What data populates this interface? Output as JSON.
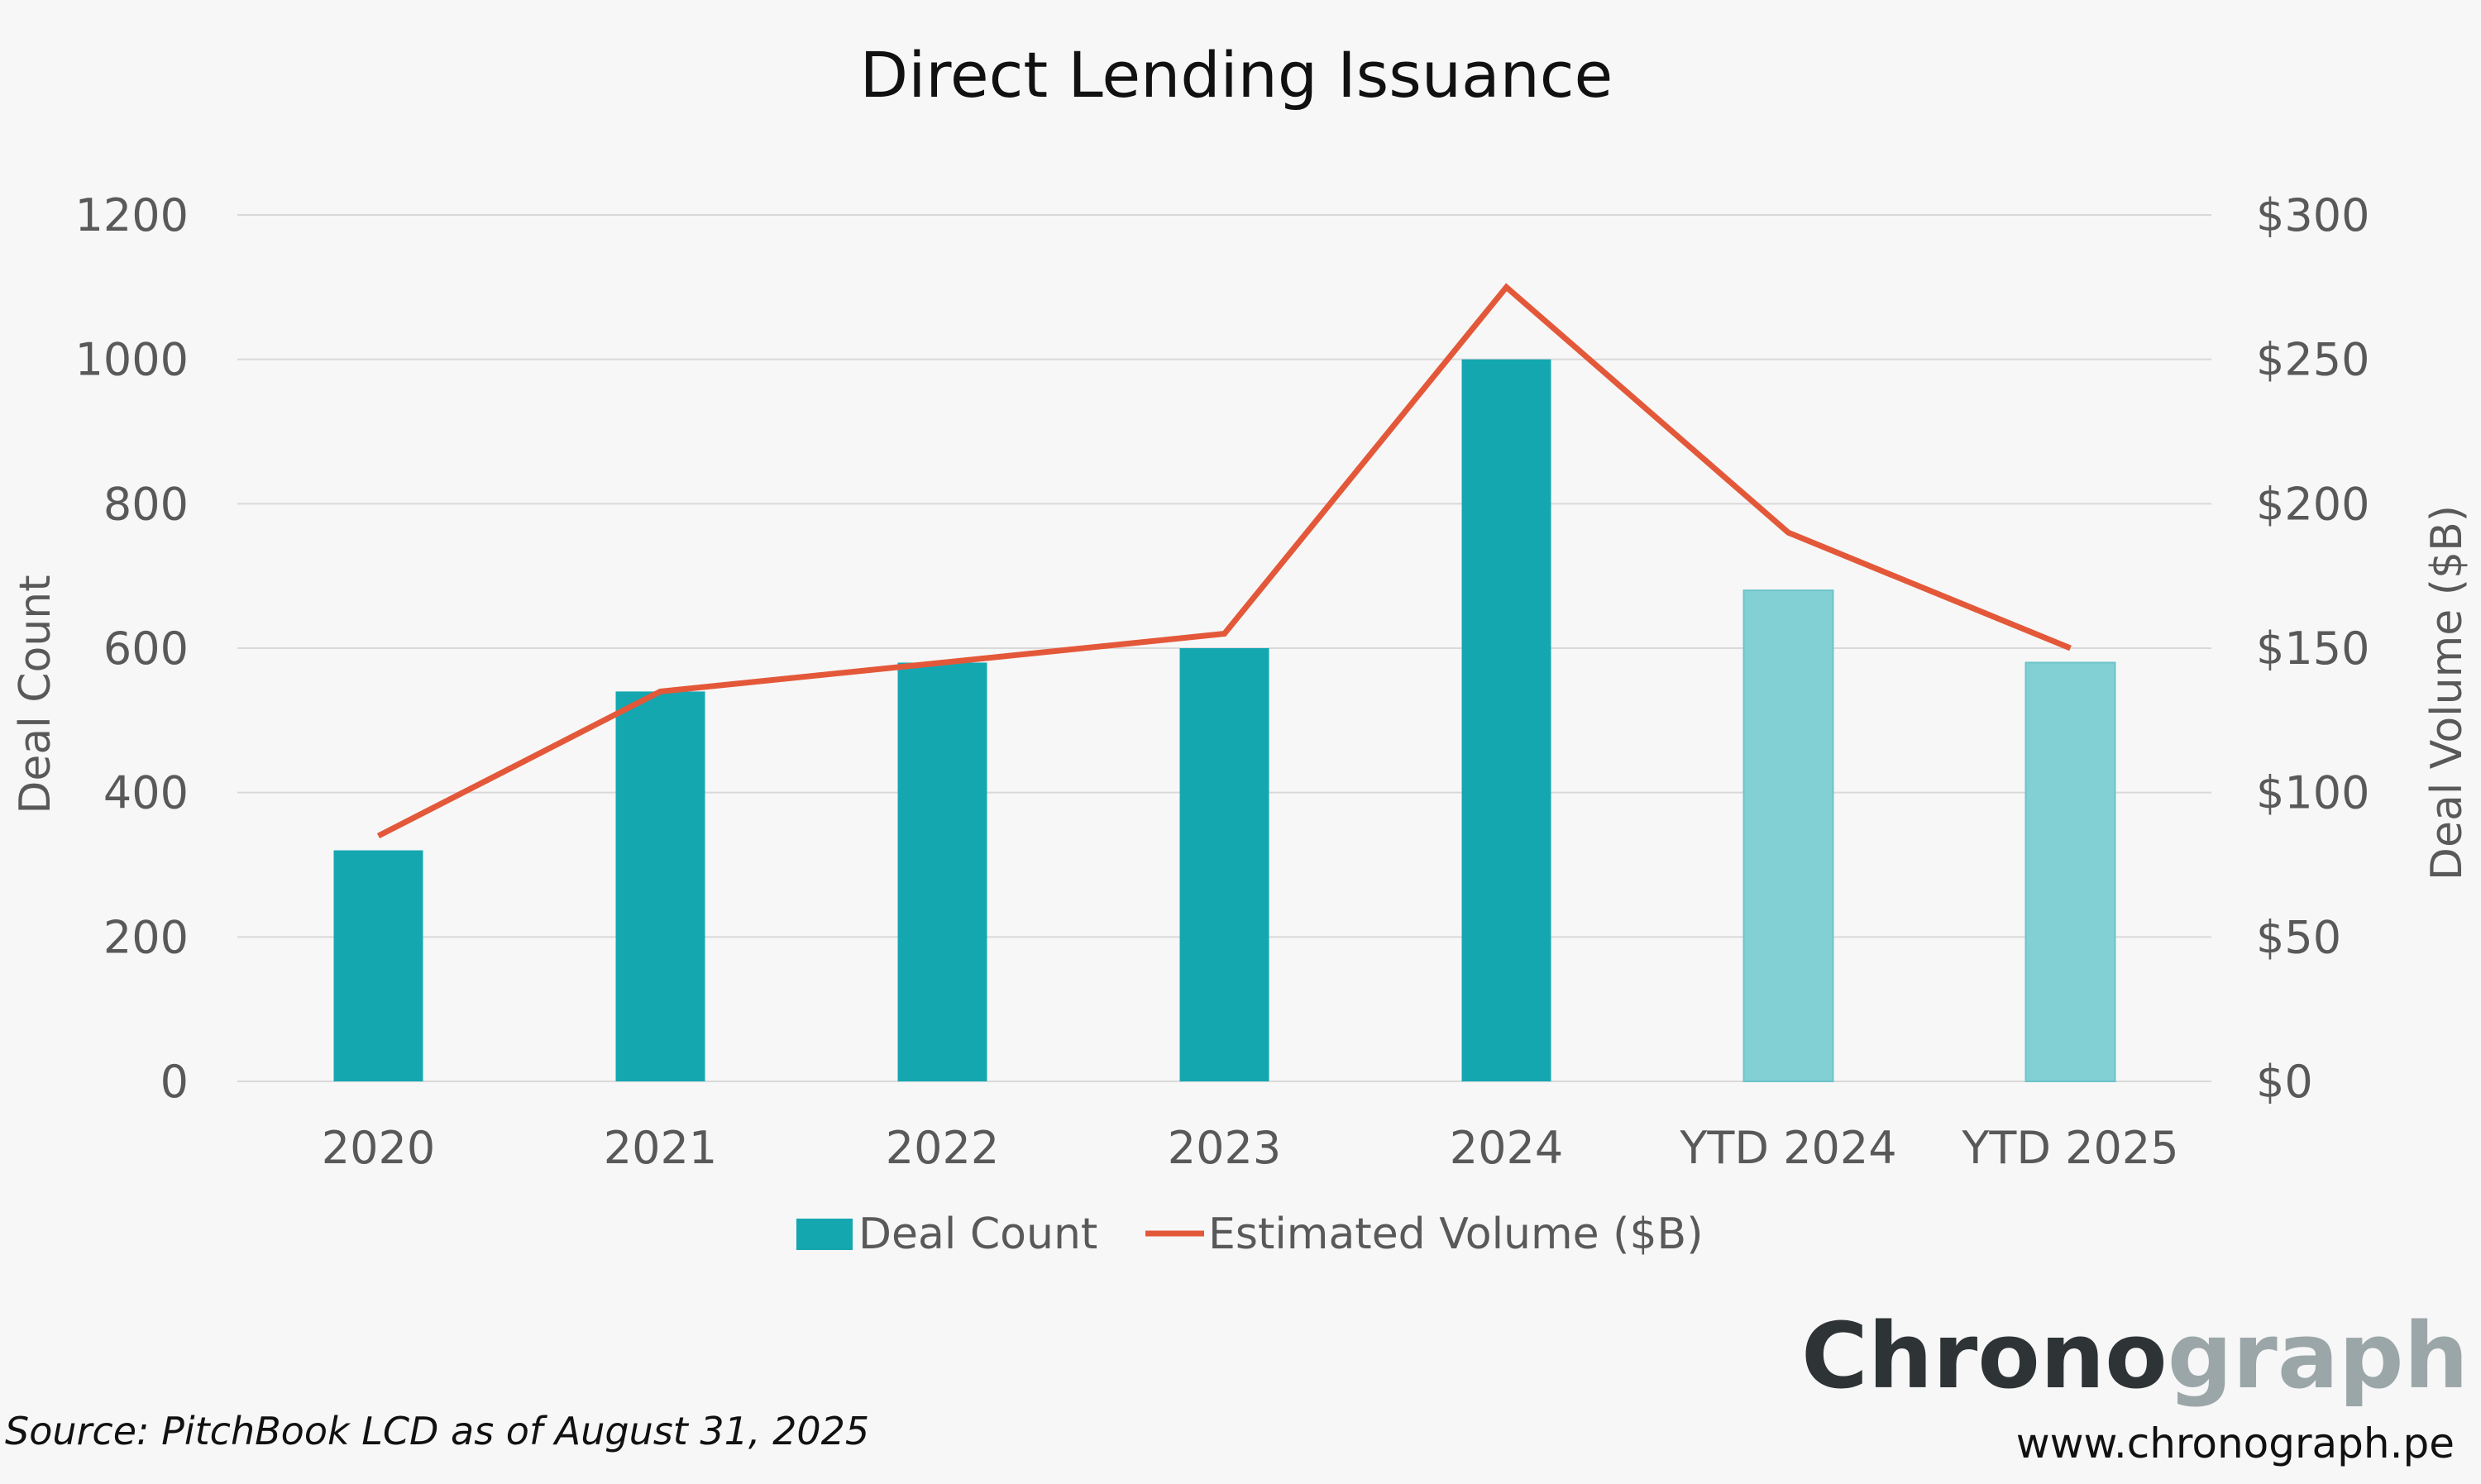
{
  "colors": {
    "bar_solid": "#14a7b0",
    "bar_light": "#82d0d4",
    "line": "#e4583a",
    "grid": "#d9d9d9",
    "brand_dark": "#2e3336",
    "brand_light": "#9ba6a8"
  },
  "chart_data": {
    "type": "bar",
    "title": "Direct Lending Issuance",
    "categories": [
      "2020",
      "2021",
      "2022",
      "2023",
      "2024",
      "YTD 2024",
      "YTD 2025"
    ],
    "series": [
      {
        "name": "Deal Count",
        "type": "bar",
        "axis": "left",
        "values": [
          320,
          540,
          580,
          600,
          1000,
          680,
          580
        ],
        "highlight": [
          "solid",
          "solid",
          "solid",
          "solid",
          "solid",
          "light",
          "light"
        ]
      },
      {
        "name": "Estimated Volume ($B)",
        "type": "line",
        "axis": "right",
        "values": [
          85,
          135,
          145,
          155,
          275,
          190,
          150
        ]
      }
    ],
    "y_left": {
      "label": "Deal Count",
      "range": [
        0,
        1200
      ],
      "ticks": [
        0,
        200,
        400,
        600,
        800,
        1000,
        1200
      ],
      "tick_labels": [
        "0",
        "200",
        "400",
        "600",
        "800",
        "1000",
        "1200"
      ]
    },
    "y_right": {
      "label": "Deal Volume ($B)",
      "range": [
        0,
        300
      ],
      "ticks": [
        0,
        50,
        100,
        150,
        200,
        250,
        300
      ],
      "tick_labels": [
        "$0",
        "$50",
        "$100",
        "$150",
        "$200",
        "$250",
        "$300"
      ]
    },
    "grid": true,
    "legend": {
      "position": "bottom",
      "entries": [
        "Deal Count",
        "Estimated Volume ($B)"
      ]
    }
  },
  "footer": {
    "source": "Source: PitchBook LCD as of August 31, 2025",
    "brand_part1": "Chrono",
    "brand_part2": "graph",
    "url": "www.chronograph.pe"
  }
}
